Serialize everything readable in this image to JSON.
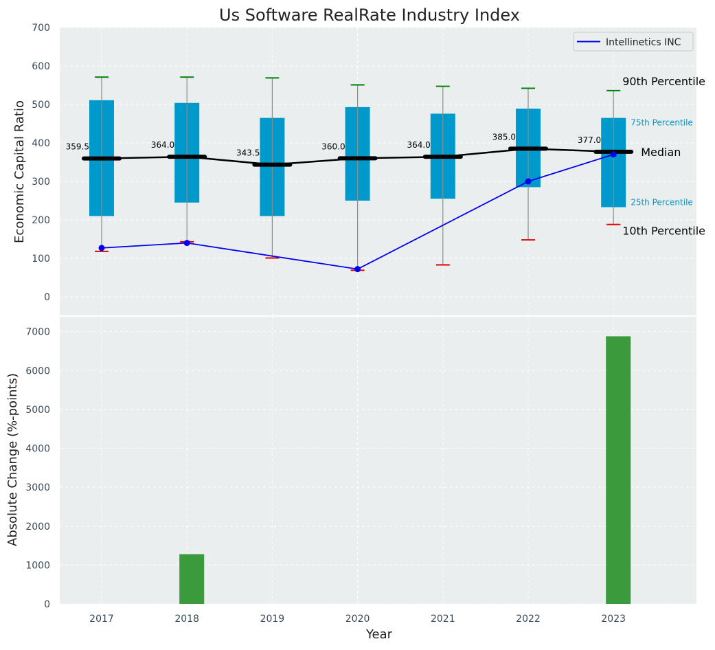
{
  "chart_data": [
    {
      "type": "box",
      "title": "Us Software RealRate Industry Index",
      "xlabel": "",
      "ylabel": "Economic Capital Ratio",
      "ylim": [
        -50,
        700
      ],
      "yticks": [
        0,
        100,
        200,
        300,
        400,
        500,
        600,
        700
      ],
      "categories": [
        "2017",
        "2018",
        "2019",
        "2020",
        "2021",
        "2022",
        "2023"
      ],
      "p10": [
        118,
        143,
        101,
        69,
        83,
        148,
        188
      ],
      "p25": [
        210,
        245,
        210,
        250,
        255,
        285,
        233
      ],
      "median": [
        359.5,
        364.0,
        343.5,
        360.0,
        364.0,
        385.0,
        377.0
      ],
      "median_labels": [
        "359.5",
        "364.0",
        "343.5",
        "360.0",
        "364.0",
        "385.0",
        "377.0"
      ],
      "p75": [
        511,
        504,
        465,
        493,
        476,
        489,
        465
      ],
      "p90": [
        571,
        571,
        569,
        551,
        547,
        542,
        536
      ],
      "series": [
        {
          "name": "Intellinetics INC",
          "color": "#0000ee",
          "values": [
            127,
            140,
            null,
            72,
            null,
            300,
            370
          ]
        }
      ],
      "legend": {
        "position": "top-right"
      },
      "annotations": {
        "p90": "90th Percentile",
        "p75": "75th Percentile",
        "median": "Median",
        "p25": "25th Percentile",
        "p10": "10th Percentile"
      },
      "colors": {
        "box": "#0099cc",
        "median": "#000000",
        "p90_cap": "#008000",
        "p10_cap": "#e00000",
        "whisker": "#8c8c8c",
        "annotation_small": "#0099cc",
        "background": "#eaeeee"
      },
      "grid": true
    },
    {
      "type": "bar",
      "xlabel": "Year",
      "ylabel": "Absolute Change (%-points)",
      "ylim": [
        0,
        7400
      ],
      "yticks": [
        0,
        1000,
        2000,
        3000,
        4000,
        5000,
        6000,
        7000
      ],
      "categories": [
        "2017",
        "2018",
        "2019",
        "2020",
        "2021",
        "2022",
        "2023"
      ],
      "values": [
        null,
        1280,
        null,
        null,
        null,
        null,
        6880
      ],
      "colors": {
        "bar": "#3a9a3c",
        "background": "#eaeeee"
      },
      "grid": true
    }
  ]
}
